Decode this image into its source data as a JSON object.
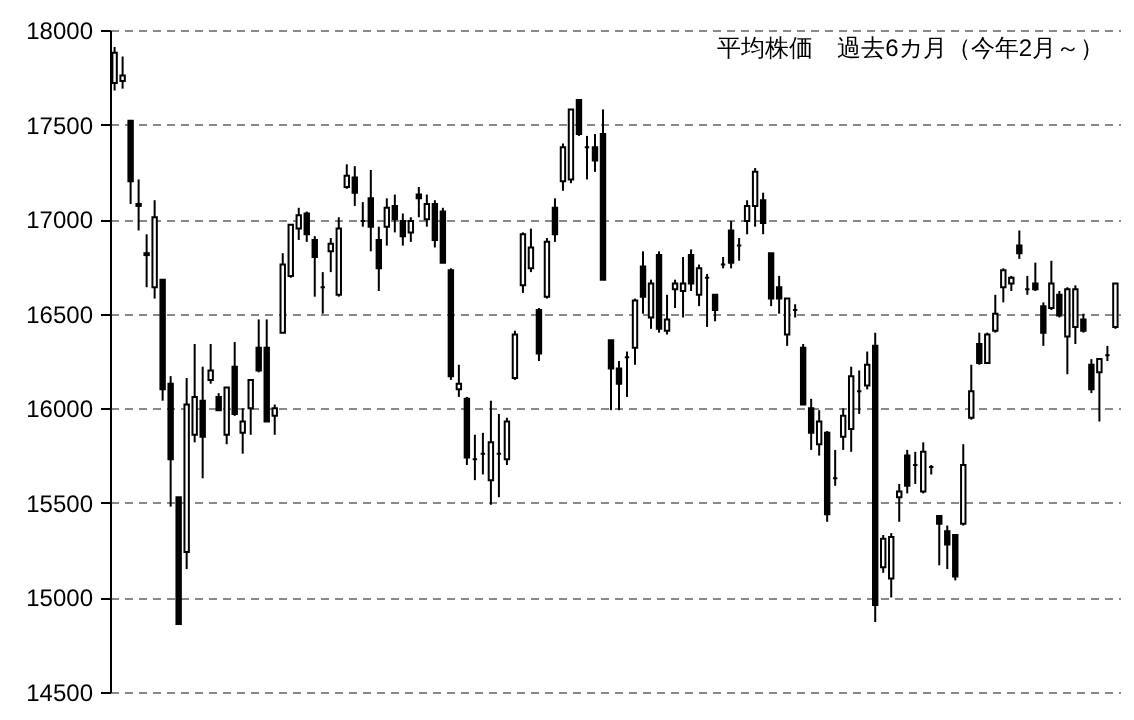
{
  "chart_data": {
    "type": "candlestick",
    "title": "平均株価　過去6カ月（今年2月～）",
    "categories": [
      null,
      null,
      null,
      null,
      null,
      null,
      null,
      null,
      null,
      null,
      null,
      null,
      null,
      null,
      null,
      null,
      null,
      null,
      null,
      null,
      null,
      null,
      null,
      null,
      null,
      null,
      null,
      null,
      null,
      null,
      null,
      null,
      null,
      null,
      null,
      null,
      null,
      null,
      null,
      null,
      null,
      null,
      null,
      null,
      null,
      null,
      null,
      null,
      null,
      null,
      null,
      null,
      null,
      null,
      null,
      null,
      null,
      null,
      null,
      null,
      null,
      null,
      null,
      null,
      null,
      null,
      null,
      null,
      null,
      null,
      null,
      null,
      null,
      null,
      null,
      null,
      null,
      null,
      null,
      null,
      null,
      null,
      null,
      null,
      null,
      null,
      null,
      null,
      null,
      null,
      null,
      null,
      null,
      null,
      null,
      null,
      null,
      null,
      null,
      null,
      null,
      null,
      null,
      null,
      null,
      null,
      null,
      null,
      null,
      null,
      null,
      null,
      null,
      null,
      null,
      null,
      null,
      null,
      null,
      null,
      null,
      null,
      null,
      null,
      null,
      null
    ],
    "ohlc": [
      [
        17720,
        17910,
        17680,
        17880
      ],
      [
        17730,
        17860,
        17690,
        17760
      ],
      [
        17520,
        17520,
        17080,
        17200
      ],
      [
        17070,
        17210,
        16940,
        17080
      ],
      [
        16810,
        16920,
        16640,
        16820
      ],
      [
        16640,
        17100,
        16580,
        17010
      ],
      [
        16680,
        16680,
        16040,
        16100
      ],
      [
        16130,
        16170,
        15480,
        15730
      ],
      [
        15530,
        15530,
        14860,
        14860
      ],
      [
        15240,
        16160,
        15150,
        16020
      ],
      [
        15860,
        16340,
        15820,
        16060
      ],
      [
        16040,
        16220,
        15630,
        15850
      ],
      [
        16150,
        16340,
        16130,
        16200
      ],
      [
        16060,
        16080,
        15990,
        15990
      ],
      [
        15860,
        16110,
        15810,
        16110
      ],
      [
        16220,
        16350,
        15960,
        15970
      ],
      [
        15870,
        16000,
        15760,
        15930
      ],
      [
        16000,
        16150,
        15860,
        16150
      ],
      [
        16320,
        16470,
        16190,
        16200
      ],
      [
        16320,
        16470,
        15930,
        15930
      ],
      [
        15960,
        16020,
        15860,
        16000
      ],
      [
        16400,
        16820,
        16400,
        16760
      ],
      [
        16700,
        16970,
        16690,
        16970
      ],
      [
        16950,
        17060,
        16890,
        17020
      ],
      [
        17030,
        17040,
        16880,
        16920
      ],
      [
        16890,
        16910,
        16590,
        16800
      ],
      [
        16640,
        16720,
        16500,
        16640
      ],
      [
        16830,
        16900,
        16720,
        16870
      ],
      [
        16600,
        17010,
        16590,
        16950
      ],
      [
        17170,
        17290,
        17160,
        17230
      ],
      [
        17220,
        17280,
        17070,
        17140
      ],
      [
        16990,
        17090,
        16960,
        16990
      ],
      [
        17110,
        17260,
        16830,
        16960
      ],
      [
        16890,
        16960,
        16620,
        16740
      ],
      [
        16960,
        17110,
        16860,
        17060
      ],
      [
        17070,
        17130,
        16930,
        17000
      ],
      [
        16990,
        17030,
        16860,
        16910
      ],
      [
        16930,
        17010,
        16880,
        16990
      ],
      [
        17130,
        17170,
        17010,
        17110
      ],
      [
        17000,
        17130,
        16960,
        17080
      ],
      [
        17080,
        17100,
        16850,
        16890
      ],
      [
        17040,
        17060,
        16770,
        16770
      ],
      [
        16730,
        16740,
        16150,
        16170
      ],
      [
        16100,
        16230,
        16060,
        16130
      ],
      [
        16050,
        16060,
        15700,
        15740
      ],
      [
        15730,
        15860,
        15620,
        15730
      ],
      [
        15760,
        15870,
        15650,
        15760
      ],
      [
        15620,
        16040,
        15490,
        15820
      ],
      [
        15760,
        15970,
        15530,
        15760
      ],
      [
        15730,
        15950,
        15700,
        15930
      ],
      [
        16160,
        16410,
        16150,
        16390
      ],
      [
        16650,
        16930,
        16610,
        16920
      ],
      [
        16740,
        16950,
        16720,
        16850
      ],
      [
        16520,
        16530,
        16250,
        16290
      ],
      [
        16590,
        16900,
        16580,
        16880
      ],
      [
        17060,
        17110,
        16880,
        16920
      ],
      [
        17200,
        17400,
        17150,
        17380
      ],
      [
        17210,
        17580,
        17190,
        17580
      ],
      [
        17630,
        17630,
        17440,
        17450
      ],
      [
        17380,
        17440,
        17210,
        17380
      ],
      [
        17380,
        17450,
        17250,
        17310
      ],
      [
        17450,
        17580,
        16680,
        16680
      ],
      [
        16360,
        16360,
        15990,
        16210
      ],
      [
        16210,
        16250,
        15990,
        16130
      ],
      [
        16270,
        16300,
        16060,
        16270
      ],
      [
        16320,
        16580,
        16230,
        16570
      ],
      [
        16750,
        16830,
        16500,
        16590
      ],
      [
        16480,
        16680,
        16420,
        16660
      ],
      [
        16810,
        16830,
        16400,
        16420
      ],
      [
        16410,
        16600,
        16390,
        16470
      ],
      [
        16630,
        16680,
        16530,
        16660
      ],
      [
        16620,
        16800,
        16480,
        16660
      ],
      [
        16810,
        16840,
        16620,
        16660
      ],
      [
        16600,
        16760,
        16540,
        16740
      ],
      [
        16690,
        16710,
        16430,
        16690
      ],
      [
        16600,
        16600,
        16460,
        16520
      ],
      [
        16760,
        16800,
        16740,
        16760
      ],
      [
        16940,
        16990,
        16740,
        16770
      ],
      [
        16860,
        16900,
        16780,
        16860
      ],
      [
        16990,
        17100,
        16920,
        17070
      ],
      [
        17070,
        17270,
        16960,
        17250
      ],
      [
        17100,
        17140,
        16920,
        16980
      ],
      [
        16820,
        16820,
        16540,
        16580
      ],
      [
        16640,
        16700,
        16500,
        16580
      ],
      [
        16390,
        16580,
        16330,
        16580
      ],
      [
        16520,
        16550,
        16480,
        16520
      ],
      [
        16320,
        16340,
        16020,
        16020
      ],
      [
        16000,
        16050,
        15780,
        15870
      ],
      [
        15810,
        15990,
        15750,
        15930
      ],
      [
        15870,
        15880,
        15400,
        15440
      ],
      [
        15630,
        15780,
        15590,
        15630
      ],
      [
        15850,
        16000,
        15780,
        15960
      ],
      [
        15890,
        16220,
        15770,
        16170
      ],
      [
        16090,
        16200,
        15970,
        16090
      ],
      [
        16120,
        16300,
        16100,
        16230
      ],
      [
        16330,
        16400,
        14870,
        14960
      ],
      [
        15160,
        15330,
        15130,
        15310
      ],
      [
        15100,
        15340,
        15000,
        15320
      ],
      [
        15530,
        15600,
        15400,
        15560
      ],
      [
        15750,
        15780,
        15550,
        15590
      ],
      [
        15700,
        15770,
        15600,
        15700
      ],
      [
        15560,
        15820,
        15550,
        15770
      ],
      [
        15690,
        15700,
        15650,
        15690
      ],
      [
        15430,
        15430,
        15170,
        15390
      ],
      [
        15350,
        15380,
        15150,
        15280
      ],
      [
        15330,
        15330,
        15090,
        15110
      ],
      [
        15390,
        15810,
        15380,
        15700
      ],
      [
        15950,
        16230,
        15940,
        16090
      ],
      [
        16340,
        16400,
        16230,
        16240
      ],
      [
        16240,
        16400,
        16240,
        16390
      ],
      [
        16410,
        16600,
        16400,
        16500
      ],
      [
        16640,
        16740,
        16560,
        16730
      ],
      [
        16660,
        16700,
        16620,
        16690
      ],
      [
        16860,
        16940,
        16790,
        16820
      ],
      [
        16630,
        16700,
        16600,
        16630
      ],
      [
        16660,
        16770,
        16620,
        16630
      ],
      [
        16540,
        16560,
        16330,
        16400
      ],
      [
        16530,
        16780,
        16520,
        16660
      ],
      [
        16600,
        16620,
        16480,
        16490
      ],
      [
        16380,
        16640,
        16180,
        16630
      ],
      [
        16430,
        16650,
        16340,
        16630
      ],
      [
        16470,
        16500,
        16400,
        16410
      ],
      [
        16230,
        16260,
        16080,
        16100
      ],
      [
        16190,
        16260,
        15930,
        16260
      ],
      [
        16280,
        16330,
        16250,
        16280
      ],
      [
        16430,
        16660,
        16420,
        16660
      ]
    ],
    "ylim": [
      14500,
      18000
    ],
    "yticks": [
      14500,
      15000,
      15500,
      16000,
      16500,
      17000,
      17500,
      18000
    ],
    "grid": "y",
    "tick_labels": "y"
  }
}
